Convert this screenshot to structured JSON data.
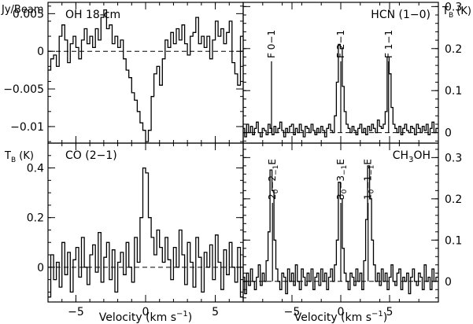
{
  "chart_data": [
    {
      "type": "line",
      "name": "OH 18-cm",
      "title": "OH 18-cm",
      "ylabel": "Jy/Beam",
      "xlim": [
        -7,
        7
      ],
      "ylim": [
        -0.0122,
        0.0065
      ],
      "yticks": [
        0.005,
        0,
        -0.005,
        -0.01
      ],
      "ytick_labels": [
        "0.005",
        "0",
        "−0.005",
        "−0.01"
      ],
      "baseline": 0,
      "x": [
        -6.9,
        -6.7,
        -6.5,
        -6.3,
        -6.1,
        -5.9,
        -5.7,
        -5.5,
        -5.3,
        -5.1,
        -4.9,
        -4.7,
        -4.5,
        -4.3,
        -4.1,
        -3.9,
        -3.7,
        -3.5,
        -3.3,
        -3.1,
        -2.9,
        -2.7,
        -2.5,
        -2.3,
        -2.1,
        -1.9,
        -1.7,
        -1.5,
        -1.3,
        -1.1,
        -0.9,
        -0.7,
        -0.5,
        -0.3,
        -0.1,
        0.1,
        0.3,
        0.5,
        0.7,
        0.9,
        1.1,
        1.3,
        1.5,
        1.7,
        1.9,
        2.1,
        2.3,
        2.5,
        2.7,
        2.9,
        3.1,
        3.3,
        3.5,
        3.7,
        3.9,
        4.1,
        4.3,
        4.5,
        4.7,
        4.9,
        5.1,
        5.3,
        5.5,
        5.7,
        5.9,
        6.1,
        6.3,
        6.5,
        6.7,
        6.9
      ],
      "values": [
        -0.0025,
        -0.001,
        -0.0005,
        -0.002,
        0.002,
        0.0035,
        0.0015,
        -0.0015,
        0.001,
        0.002,
        0.0005,
        -0.001,
        0.0015,
        0.003,
        0.001,
        0.002,
        0.0005,
        0.003,
        0.0015,
        0.0045,
        0.0055,
        0.003,
        0.0035,
        0.001,
        0.002,
        0.0005,
        0.0015,
        -0.001,
        -0.0025,
        -0.0035,
        -0.0055,
        -0.0065,
        -0.008,
        -0.0095,
        -0.0105,
        -0.012,
        -0.0105,
        -0.006,
        -0.003,
        -0.002,
        -0.0045,
        -0.001,
        0.0015,
        0.0005,
        0.0025,
        0.001,
        0.003,
        0.0015,
        0.0035,
        0.001,
        -0.0005,
        0.002,
        0.0025,
        0.0045,
        0.001,
        0.002,
        0.0005,
        0.002,
        -0.001,
        0.0015,
        0.004,
        0.002,
        0.003,
        0.001,
        0.0025,
        0.004,
        -0.0015,
        -0.003,
        -0.0045,
        0.002
      ]
    },
    {
      "type": "line",
      "name": "HCN (1−0)",
      "title": "HCN (1−0)",
      "ylabel": "T",
      "ylabel_sub": "B",
      "ylabel_suffix": " (K)",
      "xlim": [
        -10,
        10
      ],
      "ylim": [
        -0.025,
        0.31
      ],
      "yticks": [
        0,
        0.1,
        0.2,
        0.3
      ],
      "ytick_labels": [
        "0",
        "0.1",
        "0.2",
        "0.3"
      ],
      "baseline": 0,
      "line_labels": [
        {
          "text": "F 0−1",
          "x": -7.1
        },
        {
          "text": "F 2−1",
          "x": 0.0
        },
        {
          "text": "F 1−1",
          "x": 4.9
        }
      ],
      "x": [
        -9.95,
        -9.75,
        -9.55,
        -9.35,
        -9.15,
        -8.95,
        -8.75,
        -8.55,
        -8.35,
        -8.15,
        -7.95,
        -7.75,
        -7.55,
        -7.35,
        -7.15,
        -6.95,
        -6.75,
        -6.55,
        -6.35,
        -6.15,
        -5.95,
        -5.75,
        -5.55,
        -5.35,
        -5.15,
        -4.95,
        -4.75,
        -4.55,
        -4.35,
        -4.15,
        -3.95,
        -3.75,
        -3.55,
        -3.35,
        -3.15,
        -2.95,
        -2.75,
        -2.55,
        -2.35,
        -2.15,
        -1.95,
        -1.75,
        -1.55,
        -1.35,
        -1.15,
        -0.95,
        -0.75,
        -0.55,
        -0.35,
        -0.15,
        0.05,
        0.25,
        0.45,
        0.65,
        0.85,
        1.05,
        1.25,
        1.45,
        1.65,
        1.85,
        2.05,
        2.25,
        2.45,
        2.65,
        2.85,
        3.05,
        3.25,
        3.45,
        3.65,
        3.85,
        4.05,
        4.25,
        4.45,
        4.65,
        4.85,
        5.05,
        5.25,
        5.45,
        5.65,
        5.85,
        6.05,
        6.25,
        6.45,
        6.65,
        6.85,
        7.05,
        7.25,
        7.45,
        7.65,
        7.85,
        8.05,
        8.25,
        8.45,
        8.65,
        8.85,
        9.05,
        9.25,
        9.45,
        9.65,
        9.85
      ],
      "values": [
        0.01,
        -0.01,
        0.02,
        0.0,
        0.015,
        -0.005,
        0.01,
        0.025,
        0.0,
        -0.01,
        0.01,
        0.005,
        -0.005,
        0.02,
        0.01,
        -0.005,
        0.015,
        0.0,
        0.01,
        0.025,
        0.005,
        -0.01,
        0.01,
        0.0,
        0.015,
        0.02,
        -0.005,
        0.01,
        0.0,
        0.02,
        0.005,
        -0.01,
        0.015,
        0.01,
        0.0,
        0.02,
        0.005,
        -0.005,
        0.01,
        0.0,
        0.015,
        0.005,
        -0.01,
        0.01,
        0.02,
        0.005,
        0.0,
        0.04,
        0.12,
        0.21,
        0.2,
        0.11,
        0.05,
        0.02,
        0.01,
        0.0,
        0.015,
        0.005,
        -0.005,
        0.01,
        0.02,
        0.0,
        0.01,
        -0.005,
        0.015,
        0.005,
        0.02,
        0.01,
        0.0,
        0.03,
        0.015,
        0.01,
        0.02,
        0.05,
        0.18,
        0.14,
        0.06,
        0.02,
        0.01,
        0.0,
        0.015,
        -0.005,
        0.01,
        0.02,
        0.005,
        0.0,
        0.015,
        0.01,
        -0.005,
        0.02,
        0.01,
        0.0,
        0.015,
        0.005,
        0.02,
        -0.005,
        0.01,
        0.025,
        0.0,
        0.01
      ]
    },
    {
      "type": "line",
      "name": "CO (2−1)",
      "title": "CO (2−1)",
      "ylabel": "T",
      "ylabel_sub": "B",
      "ylabel_suffix": " (K)",
      "xlabel": "Velocity (km s",
      "xlabel_sup": "−1",
      "xlabel_suffix": ")",
      "xlim": [
        -7,
        7
      ],
      "ylim": [
        -0.14,
        0.5
      ],
      "yticks": [
        0,
        0.2,
        0.4
      ],
      "ytick_labels": [
        "0",
        "0.2",
        "0.4"
      ],
      "xticks": [
        -5,
        0,
        5
      ],
      "xtick_labels": [
        "−5",
        "0",
        "5"
      ],
      "baseline": 0,
      "x": [
        -6.9,
        -6.7,
        -6.5,
        -6.3,
        -6.1,
        -5.9,
        -5.7,
        -5.5,
        -5.3,
        -5.1,
        -4.9,
        -4.7,
        -4.5,
        -4.3,
        -4.1,
        -3.9,
        -3.7,
        -3.5,
        -3.3,
        -3.1,
        -2.9,
        -2.7,
        -2.5,
        -2.3,
        -2.1,
        -1.9,
        -1.7,
        -1.5,
        -1.3,
        -1.1,
        -0.9,
        -0.7,
        -0.5,
        -0.3,
        -0.1,
        0.1,
        0.3,
        0.5,
        0.7,
        0.9,
        1.1,
        1.3,
        1.5,
        1.7,
        1.9,
        2.1,
        2.3,
        2.5,
        2.7,
        2.9,
        3.1,
        3.3,
        3.5,
        3.7,
        3.9,
        4.1,
        4.3,
        4.5,
        4.7,
        4.9,
        5.1,
        5.3,
        5.5,
        5.7,
        5.9,
        6.1,
        6.3,
        6.5,
        6.7,
        6.9
      ],
      "values": [
        -0.12,
        0.05,
        -0.05,
        0.02,
        -0.08,
        0.1,
        -0.03,
        0.06,
        -0.1,
        0.03,
        0.08,
        -0.04,
        0.12,
        0.0,
        -0.07,
        0.05,
        0.09,
        -0.02,
        0.14,
        -0.06,
        0.04,
        0.1,
        -0.05,
        0.07,
        -0.1,
        0.02,
        0.06,
        -0.03,
        0.1,
        0.0,
        -0.06,
        0.12,
        0.02,
        0.2,
        0.4,
        0.38,
        0.2,
        0.12,
        0.05,
        0.15,
        0.08,
        0.02,
        0.12,
        0.03,
        -0.05,
        0.08,
        0.0,
        0.15,
        0.05,
        -0.07,
        0.1,
        0.02,
        -0.08,
        0.12,
        0.04,
        -0.1,
        0.06,
        0.0,
        0.09,
        -0.05,
        0.13,
        0.02,
        -0.09,
        0.07,
        -0.03,
        0.1,
        0.0,
        -0.06,
        0.08,
        -0.12
      ]
    },
    {
      "type": "line",
      "name": "CH3OH",
      "title_parts": [
        "CH",
        "3",
        "OH"
      ],
      "xlabel": "Velocity (km s",
      "xlabel_sup": "−1",
      "xlabel_suffix": ")",
      "xlim": [
        -10,
        10
      ],
      "ylim": [
        -0.05,
        0.335
      ],
      "yticks": [
        0,
        0.1,
        0.2,
        0.3
      ],
      "ytick_labels": [
        "0",
        "0.1",
        "0.2",
        "0.3"
      ],
      "xticks": [
        -5,
        0,
        5
      ],
      "xtick_labels": [
        "−5",
        "0",
        "5"
      ],
      "baseline": 0,
      "line_labels": [
        {
          "x": -7.0,
          "parts": [
            [
              "2",
              ""
            ],
            [
              "0",
              "sub"
            ],
            [
              "−2",
              ""
            ],
            [
              "−1",
              "sub"
            ],
            [
              "E",
              ""
            ]
          ]
        },
        {
          "x": 0.0,
          "parts": [
            [
              "3",
              ""
            ],
            [
              "0",
              "sub"
            ],
            [
              "−3",
              ""
            ],
            [
              "−1",
              "sub"
            ],
            [
              "E",
              ""
            ]
          ]
        },
        {
          "x": 2.8,
          "parts": [
            [
              "1",
              ""
            ],
            [
              "0",
              "sub"
            ],
            [
              "−1",
              ""
            ],
            [
              "−1",
              "sub"
            ],
            [
              "E",
              ""
            ]
          ]
        }
      ],
      "x": [
        -9.95,
        -9.75,
        -9.55,
        -9.35,
        -9.15,
        -8.95,
        -8.75,
        -8.55,
        -8.35,
        -8.15,
        -7.95,
        -7.75,
        -7.55,
        -7.35,
        -7.15,
        -6.95,
        -6.75,
        -6.55,
        -6.35,
        -6.15,
        -5.95,
        -5.75,
        -5.55,
        -5.35,
        -5.15,
        -4.95,
        -4.75,
        -4.55,
        -4.35,
        -4.15,
        -3.95,
        -3.75,
        -3.55,
        -3.35,
        -3.15,
        -2.95,
        -2.75,
        -2.55,
        -2.35,
        -2.15,
        -1.95,
        -1.75,
        -1.55,
        -1.35,
        -1.15,
        -0.95,
        -0.75,
        -0.55,
        -0.35,
        -0.15,
        0.05,
        0.25,
        0.45,
        0.65,
        0.85,
        1.05,
        1.25,
        1.45,
        1.65,
        1.85,
        2.05,
        2.25,
        2.45,
        2.65,
        2.85,
        3.05,
        3.25,
        3.45,
        3.65,
        3.85,
        4.05,
        4.25,
        4.45,
        4.65,
        4.85,
        5.05,
        5.25,
        5.45,
        5.65,
        5.85,
        6.05,
        6.25,
        6.45,
        6.65,
        6.85,
        7.05,
        7.25,
        7.45,
        7.65,
        7.85,
        8.05,
        8.25,
        8.45,
        8.65,
        8.85,
        9.05,
        9.25,
        9.45,
        9.65,
        9.85
      ],
      "values": [
        0.01,
        -0.03,
        0.02,
        -0.01,
        0.03,
        0.0,
        -0.02,
        0.01,
        0.04,
        -0.01,
        0.02,
        0.0,
        0.05,
        0.12,
        0.27,
        0.22,
        0.1,
        0.03,
        0.0,
        -0.02,
        0.02,
        0.01,
        -0.03,
        0.03,
        0.0,
        0.02,
        -0.01,
        0.04,
        0.0,
        -0.02,
        0.03,
        0.01,
        -0.01,
        0.02,
        0.0,
        0.03,
        -0.02,
        0.01,
        0.02,
        -0.01,
        0.03,
        0.0,
        0.02,
        -0.02,
        0.01,
        0.03,
        0.0,
        0.04,
        0.1,
        0.24,
        0.2,
        0.08,
        0.02,
        0.0,
        -0.02,
        0.02,
        0.01,
        -0.01,
        0.03,
        0.0,
        0.02,
        -0.02,
        0.05,
        0.15,
        0.28,
        0.2,
        0.1,
        0.04,
        0.0,
        0.02,
        -0.01,
        0.03,
        0.0,
        0.02,
        -0.02,
        0.01,
        0.04,
        0.0,
        -0.01,
        0.02,
        0.03,
        -0.02,
        0.01,
        0.0,
        0.02,
        -0.03,
        0.01,
        0.03,
        0.0,
        -0.01,
        0.02,
        0.01,
        -0.02,
        0.04,
        0.0,
        0.01,
        -0.02,
        0.03,
        0.0,
        0.01
      ]
    }
  ]
}
